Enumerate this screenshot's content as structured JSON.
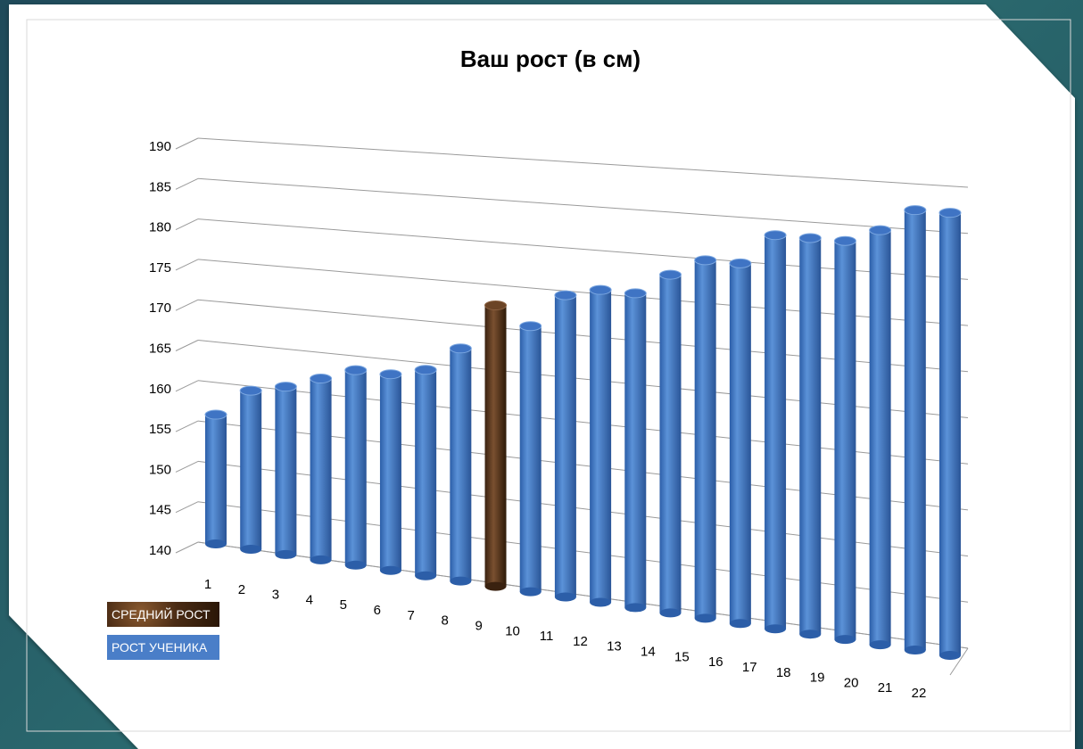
{
  "chart_data": {
    "type": "bar",
    "title": "Ваш рост (в см)",
    "xlabel": "",
    "ylabel": "",
    "ylim": [
      140,
      190
    ],
    "yticks": [
      140,
      145,
      150,
      155,
      160,
      165,
      170,
      175,
      180,
      185,
      190
    ],
    "categories": [
      "1",
      "2",
      "3",
      "4",
      "5",
      "6",
      "7",
      "8",
      "9",
      "10",
      "11",
      "12",
      "13",
      "14",
      "15",
      "16",
      "17",
      "18",
      "19",
      "20",
      "21",
      "22"
    ],
    "values": [
      156,
      159.5,
      160.5,
      162,
      163.5,
      163.5,
      164.5,
      167.5,
      173,
      171,
      175,
      176,
      176,
      178.5,
      180.5,
      180.5,
      184,
      184,
      184,
      185.5,
      188,
      188
    ],
    "highlight_index": 8,
    "series": [
      {
        "name": "СРЕДНИЙ РОСТ",
        "color": "#5a3a1e"
      },
      {
        "name": "РОСТ УЧЕНИКА",
        "color": "#4a7ec8"
      }
    ],
    "grid": true,
    "legend_position": "bottom-left"
  },
  "legend": {
    "avg_label": "СРЕДНИЙ РОСТ",
    "student_label": "РОСТ УЧЕНИКА"
  },
  "colors": {
    "bar": "#4a7ec8",
    "highlight": "#5a3a1e",
    "background": "#2b6a6f"
  }
}
